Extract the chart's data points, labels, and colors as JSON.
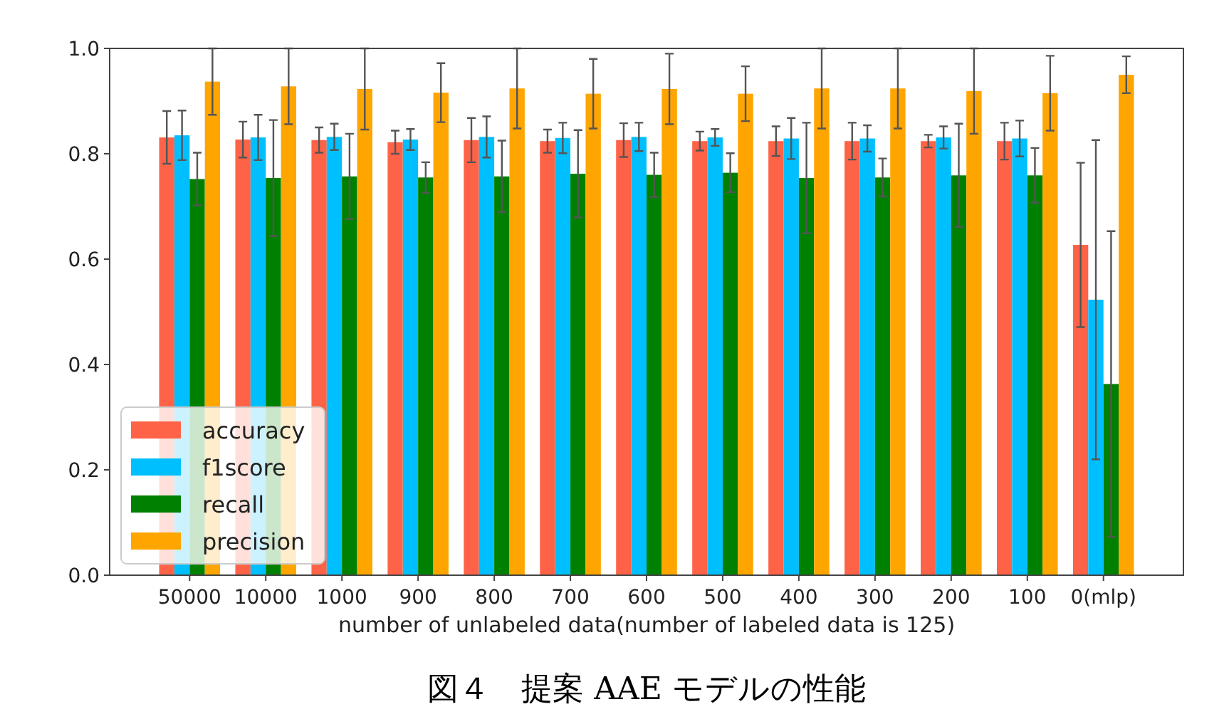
{
  "chart_data": {
    "type": "bar",
    "title": "図４　提案 AAE モデルの性能",
    "xlabel": "number of unlabeled data(number of labeled data is 125)",
    "categories": [
      "50000",
      "10000",
      "1000",
      "900",
      "800",
      "700",
      "600",
      "500",
      "400",
      "300",
      "200",
      "100",
      "0(mlp)"
    ],
    "series": [
      {
        "name": "accuracy",
        "color": "#ff6347",
        "values": [
          0.831,
          0.827,
          0.826,
          0.822,
          0.826,
          0.824,
          0.826,
          0.824,
          0.824,
          0.824,
          0.824,
          0.824,
          0.627
        ],
        "errors": [
          0.05,
          0.034,
          0.024,
          0.022,
          0.042,
          0.022,
          0.032,
          0.018,
          0.028,
          0.035,
          0.012,
          0.035,
          0.156
        ]
      },
      {
        "name": "f1score",
        "color": "#00bfff",
        "values": [
          0.835,
          0.831,
          0.832,
          0.827,
          0.832,
          0.83,
          0.832,
          0.831,
          0.829,
          0.829,
          0.831,
          0.829,
          0.523
        ],
        "errors": [
          0.047,
          0.043,
          0.025,
          0.02,
          0.039,
          0.029,
          0.027,
          0.016,
          0.039,
          0.025,
          0.021,
          0.034,
          0.303
        ]
      },
      {
        "name": "recall",
        "color": "#008000",
        "values": [
          0.752,
          0.754,
          0.757,
          0.755,
          0.757,
          0.762,
          0.76,
          0.764,
          0.754,
          0.755,
          0.759,
          0.759,
          0.363
        ],
        "errors": [
          0.05,
          0.11,
          0.081,
          0.029,
          0.068,
          0.083,
          0.042,
          0.037,
          0.105,
          0.036,
          0.098,
          0.052,
          0.29
        ]
      },
      {
        "name": "precision",
        "color": "#ffa500",
        "values": [
          0.937,
          0.928,
          0.923,
          0.916,
          0.924,
          0.914,
          0.923,
          0.914,
          0.924,
          0.924,
          0.919,
          0.915,
          0.95
        ],
        "errors": [
          0.063,
          0.072,
          0.077,
          0.056,
          0.076,
          0.066,
          0.067,
          0.052,
          0.076,
          0.076,
          0.081,
          0.071,
          0.035
        ]
      }
    ],
    "ylim": [
      0,
      1
    ],
    "yticks": [
      {
        "value": 0,
        "label": "0.0"
      },
      {
        "value": 0.2,
        "label": "0.2"
      },
      {
        "value": 0.4,
        "label": "0.4"
      },
      {
        "value": 0.6,
        "label": "0.6"
      },
      {
        "value": 0.8,
        "label": "0.8"
      },
      {
        "value": 1,
        "label": "1.0"
      }
    ],
    "legend": "bottom left",
    "grid": false
  }
}
